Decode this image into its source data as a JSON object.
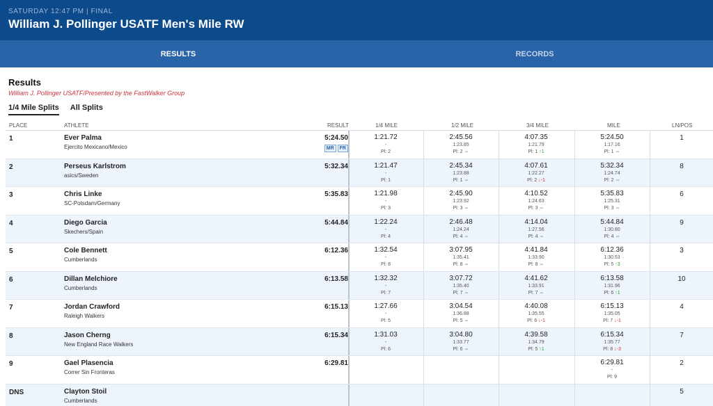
{
  "header": {
    "subtitle": "SATURDAY 12:47 PM | FINAL",
    "title": "William J. Pollinger USATF Men's Mile RW"
  },
  "tabs": [
    {
      "label": "RESULTS",
      "active": true
    },
    {
      "label": "RECORDS",
      "active": false
    }
  ],
  "section": {
    "title": "Results",
    "subtitle": "William J. Pollinger USATF/Presented by the FastWalker Group"
  },
  "split_tabs": [
    {
      "label": "1/4 Mile Splits",
      "active": true
    },
    {
      "label": "All Splits",
      "active": false
    }
  ],
  "columns": {
    "place": "PLACE",
    "athlete": "ATHLETE",
    "result": "RESULT",
    "s1": "1/4 MILE",
    "s2": "1/2 MILE",
    "s3": "3/4 MILE",
    "s4": "MILE",
    "lnpos": "LN/POS"
  },
  "rows": [
    {
      "place": "1",
      "name": "Ever Palma",
      "team": "Ejercito Mexicano/Mexico",
      "result": "5:24.50",
      "badges": [
        "MR",
        "FR"
      ],
      "splits": [
        {
          "t": "1:21.72",
          "lap": "-",
          "pl": "Pl: 2",
          "mv": "",
          "dir": ""
        },
        {
          "t": "2:45.56",
          "lap": "1:23.85",
          "pl": "Pl: 2",
          "mv": "⇔",
          "dir": "eq"
        },
        {
          "t": "4:07.35",
          "lap": "1:21.79",
          "pl": "Pl: 1",
          "mv": "↑1",
          "dir": "up"
        },
        {
          "t": "5:24.50",
          "lap": "1:17.16",
          "pl": "Pl: 1",
          "mv": "⇔",
          "dir": "eq"
        }
      ],
      "lnpos": "1"
    },
    {
      "place": "2",
      "name": "Perseus Karlstrom",
      "team": "asics/Sweden",
      "result": "5:32.34",
      "badges": [],
      "splits": [
        {
          "t": "1:21.47",
          "lap": "-",
          "pl": "Pl: 1",
          "mv": "",
          "dir": ""
        },
        {
          "t": "2:45.34",
          "lap": "1:23.88",
          "pl": "Pl: 1",
          "mv": "⇔",
          "dir": "eq"
        },
        {
          "t": "4:07.61",
          "lap": "1:22.27",
          "pl": "Pl: 2",
          "mv": "↓-1",
          "dir": "down"
        },
        {
          "t": "5:32.34",
          "lap": "1:24.74",
          "pl": "Pl: 2",
          "mv": "⇔",
          "dir": "eq"
        }
      ],
      "lnpos": "8"
    },
    {
      "place": "3",
      "name": "Chris Linke",
      "team": "SC-Potsdam/Germany",
      "result": "5:35.83",
      "badges": [],
      "splits": [
        {
          "t": "1:21.98",
          "lap": "-",
          "pl": "Pl: 3",
          "mv": "",
          "dir": ""
        },
        {
          "t": "2:45.90",
          "lap": "1:23.92",
          "pl": "Pl: 3",
          "mv": "⇔",
          "dir": "eq"
        },
        {
          "t": "4:10.52",
          "lap": "1:24.63",
          "pl": "Pl: 3",
          "mv": "⇔",
          "dir": "eq"
        },
        {
          "t": "5:35.83",
          "lap": "1:25.31",
          "pl": "Pl: 3",
          "mv": "⇔",
          "dir": "eq"
        }
      ],
      "lnpos": "6"
    },
    {
      "place": "4",
      "name": "Diego Garcia",
      "team": "Skechers/Spain",
      "result": "5:44.84",
      "badges": [],
      "splits": [
        {
          "t": "1:22.24",
          "lap": "-",
          "pl": "Pl: 4",
          "mv": "",
          "dir": ""
        },
        {
          "t": "2:46.48",
          "lap": "1:24.24",
          "pl": "Pl: 4",
          "mv": "⇔",
          "dir": "eq"
        },
        {
          "t": "4:14.04",
          "lap": "1:27.56",
          "pl": "Pl: 4",
          "mv": "⇔",
          "dir": "eq"
        },
        {
          "t": "5:44.84",
          "lap": "1:30.80",
          "pl": "Pl: 4",
          "mv": "⇔",
          "dir": "eq"
        }
      ],
      "lnpos": "9"
    },
    {
      "place": "5",
      "name": "Cole Bennett",
      "team": "Cumberlands",
      "result": "6:12.36",
      "badges": [],
      "splits": [
        {
          "t": "1:32.54",
          "lap": "-",
          "pl": "Pl: 8",
          "mv": "",
          "dir": ""
        },
        {
          "t": "3:07.95",
          "lap": "1:35.41",
          "pl": "Pl: 8",
          "mv": "⇔",
          "dir": "eq"
        },
        {
          "t": "4:41.84",
          "lap": "1:33.90",
          "pl": "Pl: 8",
          "mv": "⇔",
          "dir": "eq"
        },
        {
          "t": "6:12.36",
          "lap": "1:30.53",
          "pl": "Pl: 5",
          "mv": "↑3",
          "dir": "up"
        }
      ],
      "lnpos": "3"
    },
    {
      "place": "6",
      "name": "Dillan Melchiore",
      "team": "Cumberlands",
      "result": "6:13.58",
      "badges": [],
      "splits": [
        {
          "t": "1:32.32",
          "lap": "-",
          "pl": "Pl: 7",
          "mv": "",
          "dir": ""
        },
        {
          "t": "3:07.72",
          "lap": "1:35.40",
          "pl": "Pl: 7",
          "mv": "⇔",
          "dir": "eq"
        },
        {
          "t": "4:41.62",
          "lap": "1:33.91",
          "pl": "Pl: 7",
          "mv": "⇔",
          "dir": "eq"
        },
        {
          "t": "6:13.58",
          "lap": "1:31.96",
          "pl": "Pl: 6",
          "mv": "↑1",
          "dir": "up"
        }
      ],
      "lnpos": "10"
    },
    {
      "place": "7",
      "name": "Jordan Crawford",
      "team": "Raleigh Walkers",
      "result": "6:15.13",
      "badges": [],
      "splits": [
        {
          "t": "1:27.66",
          "lap": "-",
          "pl": "Pl: 5",
          "mv": "",
          "dir": ""
        },
        {
          "t": "3:04.54",
          "lap": "1:36.88",
          "pl": "Pl: 5",
          "mv": "⇔",
          "dir": "eq"
        },
        {
          "t": "4:40.08",
          "lap": "1:35.55",
          "pl": "Pl: 6",
          "mv": "↓-1",
          "dir": "down"
        },
        {
          "t": "6:15.13",
          "lap": "1:35.05",
          "pl": "Pl: 7",
          "mv": "↓-1",
          "dir": "down"
        }
      ],
      "lnpos": "4"
    },
    {
      "place": "8",
      "name": "Jason Cherng",
      "team": "New England Race Walkers",
      "result": "6:15.34",
      "badges": [],
      "splits": [
        {
          "t": "1:31.03",
          "lap": "-",
          "pl": "Pl: 6",
          "mv": "",
          "dir": ""
        },
        {
          "t": "3:04.80",
          "lap": "1:33.77",
          "pl": "Pl: 6",
          "mv": "⇔",
          "dir": "eq"
        },
        {
          "t": "4:39.58",
          "lap": "1:34.79",
          "pl": "Pl: 5",
          "mv": "↑1",
          "dir": "up"
        },
        {
          "t": "6:15.34",
          "lap": "1:35.77",
          "pl": "Pl: 8",
          "mv": "↓-3",
          "dir": "down"
        }
      ],
      "lnpos": "7"
    },
    {
      "place": "9",
      "name": "Gael Plasencia",
      "team": "Correr Sin Fronteras",
      "result": "6:29.81",
      "badges": [],
      "splits": [
        {
          "t": "",
          "lap": "",
          "pl": "",
          "mv": "",
          "dir": ""
        },
        {
          "t": "",
          "lap": "",
          "pl": "",
          "mv": "",
          "dir": ""
        },
        {
          "t": "",
          "lap": "",
          "pl": "",
          "mv": "",
          "dir": ""
        },
        {
          "t": "6:29.81",
          "lap": "-",
          "pl": "Pl: 9",
          "mv": "",
          "dir": ""
        }
      ],
      "lnpos": "2"
    },
    {
      "place": "DNS",
      "name": "Clayton Stoil",
      "team": "Cumberlands",
      "result": "",
      "badges": [],
      "splits": [
        {
          "t": "",
          "lap": "",
          "pl": "",
          "mv": "",
          "dir": ""
        },
        {
          "t": "",
          "lap": "",
          "pl": "",
          "mv": "",
          "dir": ""
        },
        {
          "t": "",
          "lap": "",
          "pl": "",
          "mv": "",
          "dir": ""
        },
        {
          "t": "",
          "lap": "",
          "pl": "",
          "mv": "",
          "dir": ""
        }
      ],
      "lnpos": "5"
    }
  ],
  "colors": {
    "header_bg": "#0d4a8c",
    "tabs_bg": "#2a64a8",
    "alt_row": "#eef4fb",
    "accent_red": "#d0323a",
    "up_green": "#2a9d3e"
  }
}
